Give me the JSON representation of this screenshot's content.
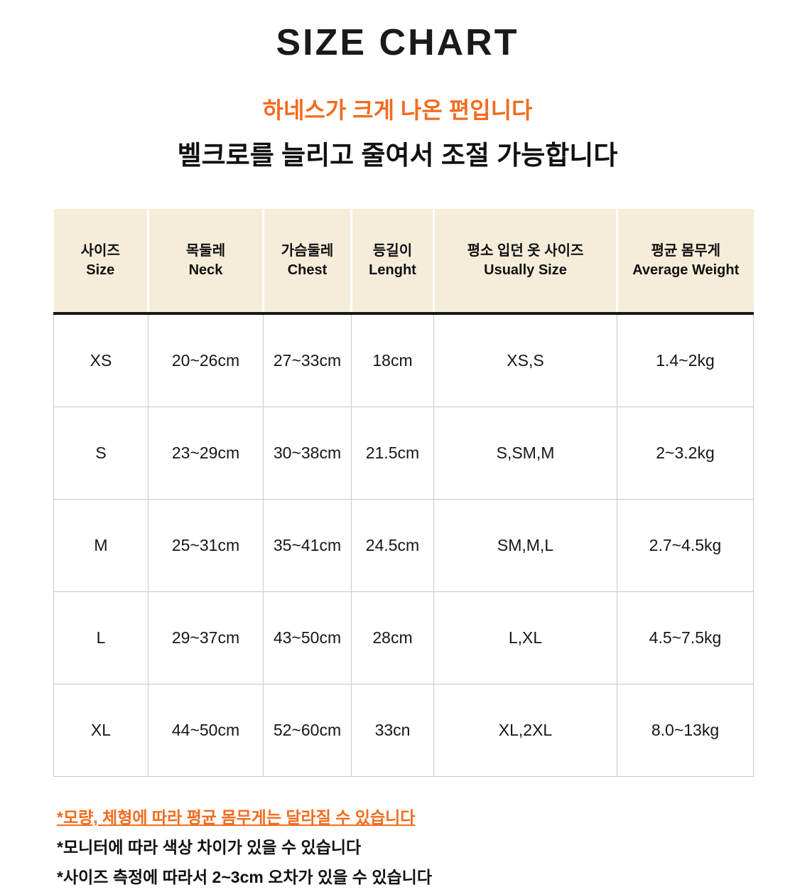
{
  "page": {
    "title": "SIZE CHART",
    "subtitle_orange": "하네스가 크게 나온 편입니다",
    "subtitle_black": "벨크로를 늘리고 줄여서 조절 가능합니다"
  },
  "colors": {
    "accent_orange": "#f26c1e",
    "header_bg": "#f5ecda",
    "grid_line": "#c9c9c9",
    "header_rule": "#181818"
  },
  "table": {
    "headers": [
      {
        "ko": "사이즈",
        "en": "Size"
      },
      {
        "ko": "목둘레",
        "en": "Neck"
      },
      {
        "ko": "가슴둘레",
        "en": "Chest"
      },
      {
        "ko": "등길이",
        "en": "Lenght"
      },
      {
        "ko": "평소 입던 옷 사이즈",
        "en": "Usually Size"
      },
      {
        "ko": "평균 몸무게",
        "en": "Average Weight"
      }
    ],
    "rows": [
      [
        "XS",
        "20~26cm",
        "27~33cm",
        "18cm",
        "XS,S",
        "1.4~2kg"
      ],
      [
        "S",
        "23~29cm",
        "30~38cm",
        "21.5cm",
        "S,SM,M",
        "2~3.2kg"
      ],
      [
        "M",
        "25~31cm",
        "35~41cm",
        "24.5cm",
        "SM,M,L",
        "2.7~4.5kg"
      ],
      [
        "L",
        "29~37cm",
        "43~50cm",
        "28cm",
        "L,XL",
        "4.5~7.5kg"
      ],
      [
        "XL",
        "44~50cm",
        "52~60cm",
        "33cn",
        "XL,2XL",
        "8.0~13kg"
      ]
    ]
  },
  "notes": [
    {
      "text": "*모량, 체형에 따라 평균 몸무게는 달라질 수 있습니다"
    },
    {
      "text": "*모니터에 따라 색상 차이가 있을 수 있습니다"
    },
    {
      "text": "*사이즈 측정에  따라서 2~3cm 오차가 있을 수 있습니다"
    }
  ]
}
